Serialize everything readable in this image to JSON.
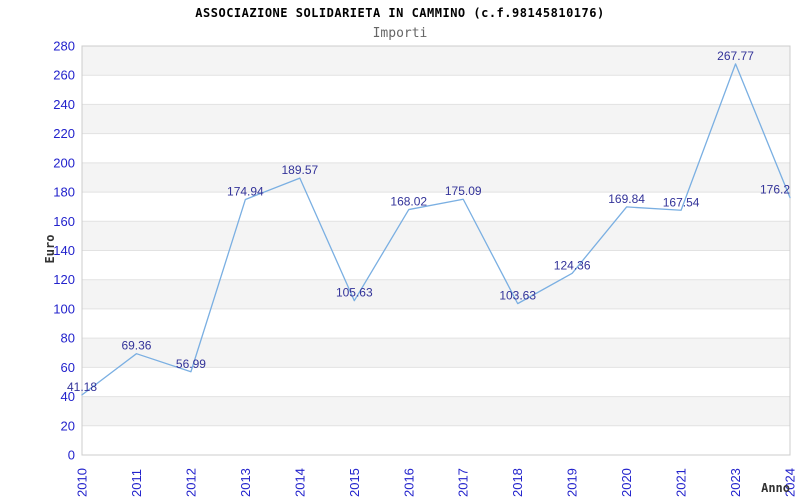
{
  "chart_data": {
    "type": "line",
    "title": "ASSOCIAZIONE SOLIDARIETA IN CAMMINO (c.f.98145810176)",
    "subtitle": "Importi",
    "xlabel": "Anno",
    "ylabel": "Euro",
    "categories": [
      "2010",
      "2011",
      "2012",
      "2013",
      "2014",
      "2015",
      "2016",
      "2017",
      "2018",
      "2019",
      "2020",
      "2021",
      "2023",
      "2024"
    ],
    "values": [
      41.18,
      69.36,
      56.99,
      174.94,
      189.57,
      105.63,
      168.02,
      175.09,
      103.63,
      124.36,
      169.84,
      167.54,
      267.77,
      176.2
    ],
    "point_labels": [
      "41.18",
      "69.36",
      "56.99",
      "174.94",
      "189.57",
      "105.63",
      "168.02",
      "175.09",
      "103.63",
      "124.36",
      "169.84",
      "167.54",
      "267.77",
      "176.2"
    ],
    "ylim": [
      0,
      280
    ],
    "ytick_step": 20,
    "legend": "none",
    "grid": "horizontal gridlines every 20 with alternating shaded bands",
    "colors": {
      "line": "#7aafe2",
      "tick_label": "#2222cc",
      "data_label": "#333399",
      "band": "#f4f4f4",
      "band_alt": "#ffffff",
      "gridline": "#e2e2e2",
      "plot_border": "#cccccc",
      "title": "#000000",
      "subtitle": "#666666",
      "axis_title": "#333333"
    }
  }
}
